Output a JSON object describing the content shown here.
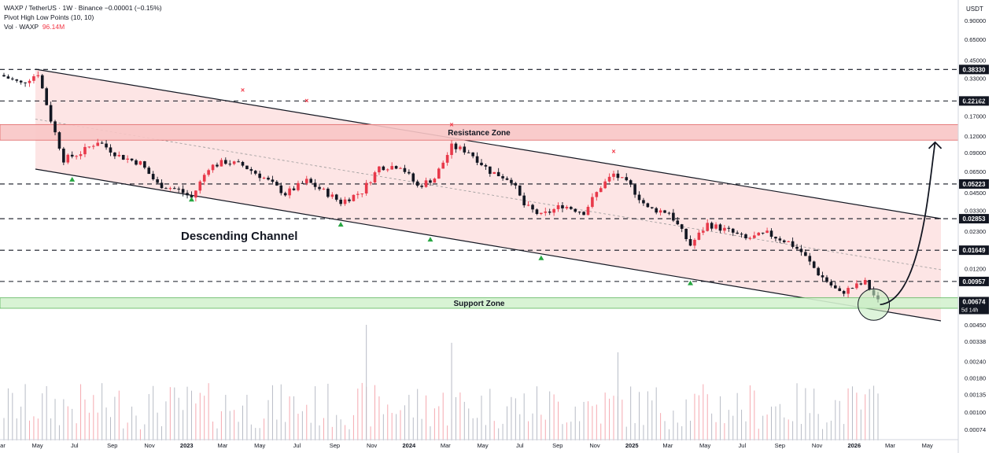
{
  "header": {
    "symbol_line": "WAXP / TetherUS · 1W · Binance  −0.00001 (−0.15%)",
    "indicator_line": "Pivot High Low Points (10, 10)",
    "volume_label": "Vol · WAXP",
    "volume_value": "96.14M"
  },
  "colors": {
    "bull": "#e8394a",
    "bear": "#131722",
    "channel_fill": "#fde0e0",
    "resistance_fill": "#f8c5c5",
    "support_fill": "#d4f2cf",
    "pivot_low": "#26a641",
    "pivot_high": "#f23645"
  },
  "chart_data": {
    "type": "candlestick",
    "axis": {
      "currency": "USDT",
      "scale": "log",
      "y_ticks": [
        "0.90000",
        "0.65000",
        "0.45000",
        "0.33000",
        "0.23000",
        "0.17000",
        "0.12000",
        "0.09000",
        "0.06500",
        "0.04500",
        "0.03300",
        "0.02300",
        "0.01200",
        "0.00450",
        "0.00338",
        "0.00240",
        "0.00180",
        "0.00135",
        "0.00100",
        "0.00074"
      ],
      "x_ticks": [
        "Mar",
        "May",
        "Jul",
        "Sep",
        "Nov",
        "2023",
        "Mar",
        "May",
        "Jul",
        "Sep",
        "Nov",
        "2024",
        "Mar",
        "May",
        "Jul",
        "Sep",
        "Nov",
        "2025",
        "Mar",
        "May",
        "Jul",
        "Sep",
        "Nov",
        "2026",
        "Mar",
        "May"
      ]
    },
    "levels": [
      {
        "price": 0.3833,
        "label": "0.38330"
      },
      {
        "price": 0.22162,
        "label": "0.22162"
      },
      {
        "price": 0.05223,
        "label": "0.05223"
      },
      {
        "price": 0.02853,
        "label": "0.02853"
      },
      {
        "price": 0.01649,
        "label": "0.01649"
      },
      {
        "price": 0.00957,
        "label": "0.00957"
      }
    ],
    "current_price": {
      "label": "0.00674",
      "countdown": "5d 14h"
    },
    "zones": [
      {
        "name": "Resistance Zone",
        "from": 0.112,
        "to": 0.147
      },
      {
        "name": "Support Zone",
        "from": 0.006,
        "to": 0.0072
      }
    ],
    "annotations": {
      "channel": "Descending Channel"
    },
    "price_anchors": [
      {
        "date": "2022-03-07",
        "close": 0.34
      },
      {
        "date": "2022-04-04",
        "close": 0.3
      },
      {
        "date": "2022-05-02",
        "close": 0.36
      },
      {
        "date": "2022-05-23",
        "close": 0.16
      },
      {
        "date": "2022-06-13",
        "close": 0.08
      },
      {
        "date": "2022-07-11",
        "close": 0.09
      },
      {
        "date": "2022-08-08",
        "close": 0.11
      },
      {
        "date": "2022-09-12",
        "close": 0.085
      },
      {
        "date": "2022-10-17",
        "close": 0.075
      },
      {
        "date": "2022-11-14",
        "close": 0.052
      },
      {
        "date": "2022-12-19",
        "close": 0.047
      },
      {
        "date": "2023-01-09",
        "close": 0.041
      },
      {
        "date": "2023-02-06",
        "close": 0.07
      },
      {
        "date": "2023-03-06",
        "close": 0.077
      },
      {
        "date": "2023-04-03",
        "close": 0.072
      },
      {
        "date": "2023-05-08",
        "close": 0.058
      },
      {
        "date": "2023-06-12",
        "close": 0.044
      },
      {
        "date": "2023-07-17",
        "close": 0.055
      },
      {
        "date": "2023-08-21",
        "close": 0.044
      },
      {
        "date": "2023-09-11",
        "close": 0.038
      },
      {
        "date": "2023-10-16",
        "close": 0.046
      },
      {
        "date": "2023-11-13",
        "close": 0.07
      },
      {
        "date": "2023-12-18",
        "close": 0.072
      },
      {
        "date": "2024-01-15",
        "close": 0.05
      },
      {
        "date": "2024-02-12",
        "close": 0.058
      },
      {
        "date": "2024-03-11",
        "close": 0.1
      },
      {
        "date": "2024-04-08",
        "close": 0.092
      },
      {
        "date": "2024-05-13",
        "close": 0.065
      },
      {
        "date": "2024-06-17",
        "close": 0.056
      },
      {
        "date": "2024-07-08",
        "close": 0.036
      },
      {
        "date": "2024-08-05",
        "close": 0.03
      },
      {
        "date": "2024-09-09",
        "close": 0.036
      },
      {
        "date": "2024-10-14",
        "close": 0.032
      },
      {
        "date": "2024-11-11",
        "close": 0.05
      },
      {
        "date": "2024-12-02",
        "close": 0.062
      },
      {
        "date": "2024-12-30",
        "close": 0.05
      },
      {
        "date": "2025-01-27",
        "close": 0.034
      },
      {
        "date": "2025-03-03",
        "close": 0.032
      },
      {
        "date": "2025-04-07",
        "close": 0.018
      },
      {
        "date": "2025-05-05",
        "close": 0.026
      },
      {
        "date": "2025-06-09",
        "close": 0.023
      },
      {
        "date": "2025-07-07",
        "close": 0.02
      },
      {
        "date": "2025-08-11",
        "close": 0.022
      },
      {
        "date": "2025-09-15",
        "close": 0.019
      },
      {
        "date": "2025-10-06",
        "close": 0.016
      },
      {
        "date": "2025-11-03",
        "close": 0.011
      },
      {
        "date": "2025-12-08",
        "close": 0.0078
      },
      {
        "date": "2025-12-29",
        "close": 0.0086
      },
      {
        "date": "2026-01-19",
        "close": 0.0094
      },
      {
        "date": "2026-02-09",
        "close": 0.00674
      }
    ],
    "volume_spikes": [
      {
        "date": "2023-10-23",
        "volume": 0.0045
      },
      {
        "date": "2024-03-11",
        "volume": 0.0033
      },
      {
        "date": "2024-12-09",
        "volume": 0.0028
      }
    ]
  }
}
